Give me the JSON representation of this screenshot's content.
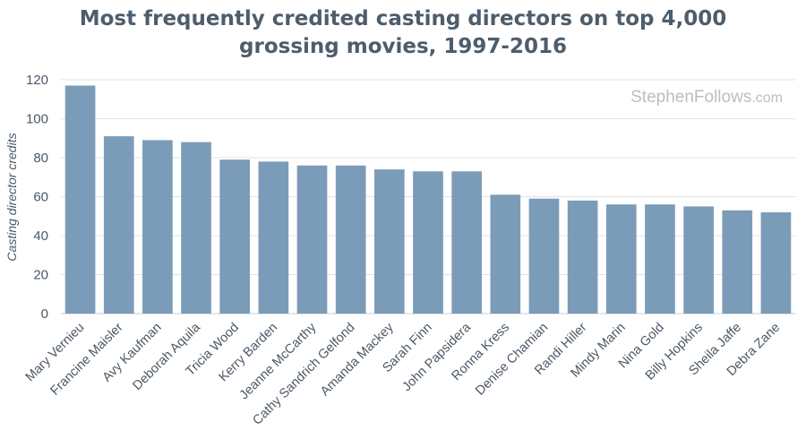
{
  "chart_data": {
    "type": "bar",
    "title": "Most frequently credited casting directors on top 4,000 grossing movies, 1997-2016",
    "xlabel": "",
    "ylabel": "Casting director credits",
    "ylim": [
      0,
      120
    ],
    "yticks": [
      0,
      20,
      40,
      60,
      80,
      100,
      120
    ],
    "grid": true,
    "bar_color": "#7b9cb8",
    "categories": [
      "Mary Vernieu",
      "Francine Maisler",
      "Avy Kaufman",
      "Deborah Aquila",
      "Tricia Wood",
      "Kerry Barden",
      "Jeanne McCarthy",
      "Cathy Sandrich Gelfond",
      "Amanda Mackey",
      "Sarah Finn",
      "John Papsidera",
      "Ronna Kress",
      "Denise Chamian",
      "Randi Hiller",
      "Mindy Marin",
      "Nina Gold",
      "Billy Hopkins",
      "Sheila Jaffe",
      "Debra Zane"
    ],
    "values": [
      117,
      91,
      89,
      88,
      79,
      78,
      76,
      76,
      74,
      73,
      73,
      61,
      59,
      58,
      56,
      56,
      55,
      53,
      52
    ]
  },
  "watermark": {
    "main": "StephenFollows",
    "suffix": ".com"
  }
}
